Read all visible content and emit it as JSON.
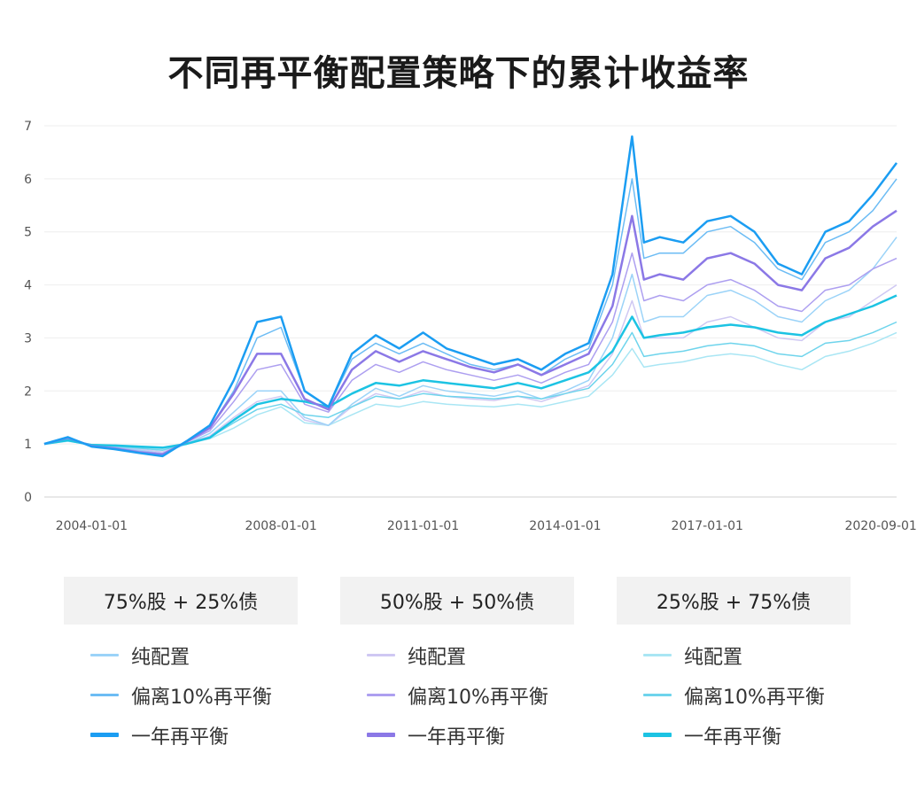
{
  "title": "不同再平衡配置策略下的累计收益率",
  "chart_data": {
    "type": "line",
    "title": "不同再平衡配置策略下的累计收益率",
    "xlabel": "",
    "ylabel": "",
    "ylim": [
      0,
      7
    ],
    "yticks": [
      "0",
      "1",
      "2",
      "3",
      "4",
      "5",
      "6",
      "7"
    ],
    "xticks": [
      "2004-01-01",
      "2008-01-01",
      "2011-01-01",
      "2014-01-01",
      "2017-01-01",
      "2020-09-01"
    ],
    "x": [
      "2003-01-01",
      "2003-07-01",
      "2004-01-01",
      "2004-07-01",
      "2005-01-01",
      "2005-07-01",
      "2006-01-01",
      "2006-07-01",
      "2007-01-01",
      "2007-07-01",
      "2008-01-01",
      "2008-07-01",
      "2009-01-01",
      "2009-07-01",
      "2010-01-01",
      "2010-07-01",
      "2011-01-01",
      "2011-07-01",
      "2012-01-01",
      "2012-07-01",
      "2013-01-01",
      "2013-07-01",
      "2014-01-01",
      "2014-07-01",
      "2015-01-01",
      "2015-06-01",
      "2015-09-01",
      "2016-01-01",
      "2016-07-01",
      "2017-01-01",
      "2017-07-01",
      "2018-01-01",
      "2018-07-01",
      "2019-01-01",
      "2019-07-01",
      "2020-01-01",
      "2020-07-01",
      "2021-01-01"
    ],
    "grid": true,
    "legend_placement": "bottom",
    "groups": [
      {
        "header": "75%股 + 25%债",
        "series_indices": [
          0,
          1,
          2
        ]
      },
      {
        "header": "50%股 + 50%债",
        "series_indices": [
          3,
          4,
          5
        ]
      },
      {
        "header": "25%股 + 75%债",
        "series_indices": [
          6,
          7,
          8
        ]
      }
    ],
    "series": [
      {
        "name": "纯配置",
        "color": "#9bd3f8",
        "width": 1.5,
        "values": [
          1.0,
          1.1,
          0.98,
          0.95,
          0.88,
          0.82,
          1.0,
          1.2,
          1.6,
          2.0,
          2.0,
          1.5,
          1.35,
          1.75,
          2.05,
          1.9,
          2.1,
          2.0,
          1.95,
          1.9,
          2.0,
          1.85,
          2.0,
          2.2,
          3.0,
          4.2,
          3.3,
          3.4,
          3.4,
          3.8,
          3.9,
          3.7,
          3.4,
          3.3,
          3.7,
          3.9,
          4.3,
          4.9
        ]
      },
      {
        "name": "偏离10%再平衡",
        "color": "#6cbcf4",
        "width": 1.5,
        "values": [
          1.0,
          1.12,
          0.96,
          0.92,
          0.85,
          0.8,
          1.05,
          1.3,
          2.0,
          3.0,
          3.2,
          2.0,
          1.7,
          2.6,
          2.9,
          2.7,
          2.9,
          2.7,
          2.5,
          2.4,
          2.5,
          2.3,
          2.6,
          2.8,
          4.0,
          6.0,
          4.5,
          4.6,
          4.6,
          5.0,
          5.1,
          4.8,
          4.3,
          4.1,
          4.8,
          5.0,
          5.4,
          6.0
        ]
      },
      {
        "name": "一年再平衡",
        "color": "#1b9df2",
        "width": 2.5,
        "values": [
          1.0,
          1.13,
          0.95,
          0.9,
          0.83,
          0.77,
          1.05,
          1.35,
          2.2,
          3.3,
          3.4,
          2.0,
          1.7,
          2.7,
          3.05,
          2.8,
          3.1,
          2.8,
          2.65,
          2.5,
          2.6,
          2.4,
          2.7,
          2.9,
          4.2,
          6.8,
          4.8,
          4.9,
          4.8,
          5.2,
          5.3,
          5.0,
          4.4,
          4.2,
          5.0,
          5.2,
          5.7,
          6.3
        ]
      },
      {
        "name": "纯配置",
        "color": "#cfc8f3",
        "width": 1.5,
        "values": [
          1.0,
          1.08,
          0.99,
          0.96,
          0.9,
          0.85,
          1.0,
          1.15,
          1.5,
          1.8,
          1.9,
          1.45,
          1.35,
          1.7,
          1.95,
          1.85,
          2.0,
          1.9,
          1.85,
          1.82,
          1.9,
          1.8,
          1.95,
          2.1,
          2.7,
          3.7,
          3.0,
          3.0,
          3.0,
          3.3,
          3.4,
          3.2,
          3.0,
          2.95,
          3.3,
          3.4,
          3.7,
          4.0
        ]
      },
      {
        "name": "偏离10%再平衡",
        "color": "#ad9ff0",
        "width": 1.5,
        "values": [
          1.0,
          1.1,
          0.97,
          0.93,
          0.86,
          0.82,
          1.03,
          1.25,
          1.8,
          2.4,
          2.5,
          1.75,
          1.6,
          2.2,
          2.5,
          2.35,
          2.55,
          2.4,
          2.3,
          2.2,
          2.3,
          2.15,
          2.35,
          2.5,
          3.3,
          4.6,
          3.7,
          3.8,
          3.7,
          4.0,
          4.1,
          3.9,
          3.6,
          3.5,
          3.9,
          4.0,
          4.3,
          4.5
        ]
      },
      {
        "name": "一年再平衡",
        "color": "#8b78e6",
        "width": 2.5,
        "values": [
          1.0,
          1.12,
          0.96,
          0.91,
          0.84,
          0.8,
          1.04,
          1.3,
          1.95,
          2.7,
          2.7,
          1.85,
          1.65,
          2.4,
          2.75,
          2.55,
          2.75,
          2.6,
          2.45,
          2.35,
          2.5,
          2.3,
          2.5,
          2.7,
          3.6,
          5.3,
          4.1,
          4.2,
          4.1,
          4.5,
          4.6,
          4.4,
          4.0,
          3.9,
          4.5,
          4.7,
          5.1,
          5.4
        ]
      },
      {
        "name": "纯配置",
        "color": "#a9e6f4",
        "width": 1.5,
        "values": [
          1.0,
          1.05,
          0.99,
          0.97,
          0.94,
          0.9,
          1.0,
          1.1,
          1.3,
          1.55,
          1.7,
          1.4,
          1.35,
          1.55,
          1.75,
          1.7,
          1.8,
          1.75,
          1.72,
          1.7,
          1.75,
          1.7,
          1.8,
          1.9,
          2.3,
          2.8,
          2.45,
          2.5,
          2.55,
          2.65,
          2.7,
          2.65,
          2.5,
          2.4,
          2.65,
          2.75,
          2.9,
          3.1
        ]
      },
      {
        "name": "偏离10%再平衡",
        "color": "#6ed4ec",
        "width": 1.5,
        "values": [
          1.0,
          1.06,
          0.98,
          0.96,
          0.92,
          0.88,
          1.01,
          1.12,
          1.4,
          1.65,
          1.75,
          1.55,
          1.5,
          1.7,
          1.9,
          1.85,
          1.95,
          1.9,
          1.88,
          1.85,
          1.9,
          1.85,
          1.95,
          2.05,
          2.5,
          3.1,
          2.65,
          2.7,
          2.75,
          2.85,
          2.9,
          2.85,
          2.7,
          2.65,
          2.9,
          2.95,
          3.1,
          3.3
        ]
      },
      {
        "name": "一年再平衡",
        "color": "#1cc3e3",
        "width": 2.5,
        "values": [
          1.0,
          1.07,
          0.98,
          0.97,
          0.95,
          0.93,
          1.0,
          1.12,
          1.45,
          1.75,
          1.85,
          1.8,
          1.7,
          1.95,
          2.15,
          2.1,
          2.2,
          2.15,
          2.1,
          2.05,
          2.15,
          2.05,
          2.2,
          2.35,
          2.75,
          3.4,
          3.0,
          3.05,
          3.1,
          3.2,
          3.25,
          3.2,
          3.1,
          3.05,
          3.3,
          3.45,
          3.6,
          3.8
        ]
      }
    ]
  }
}
